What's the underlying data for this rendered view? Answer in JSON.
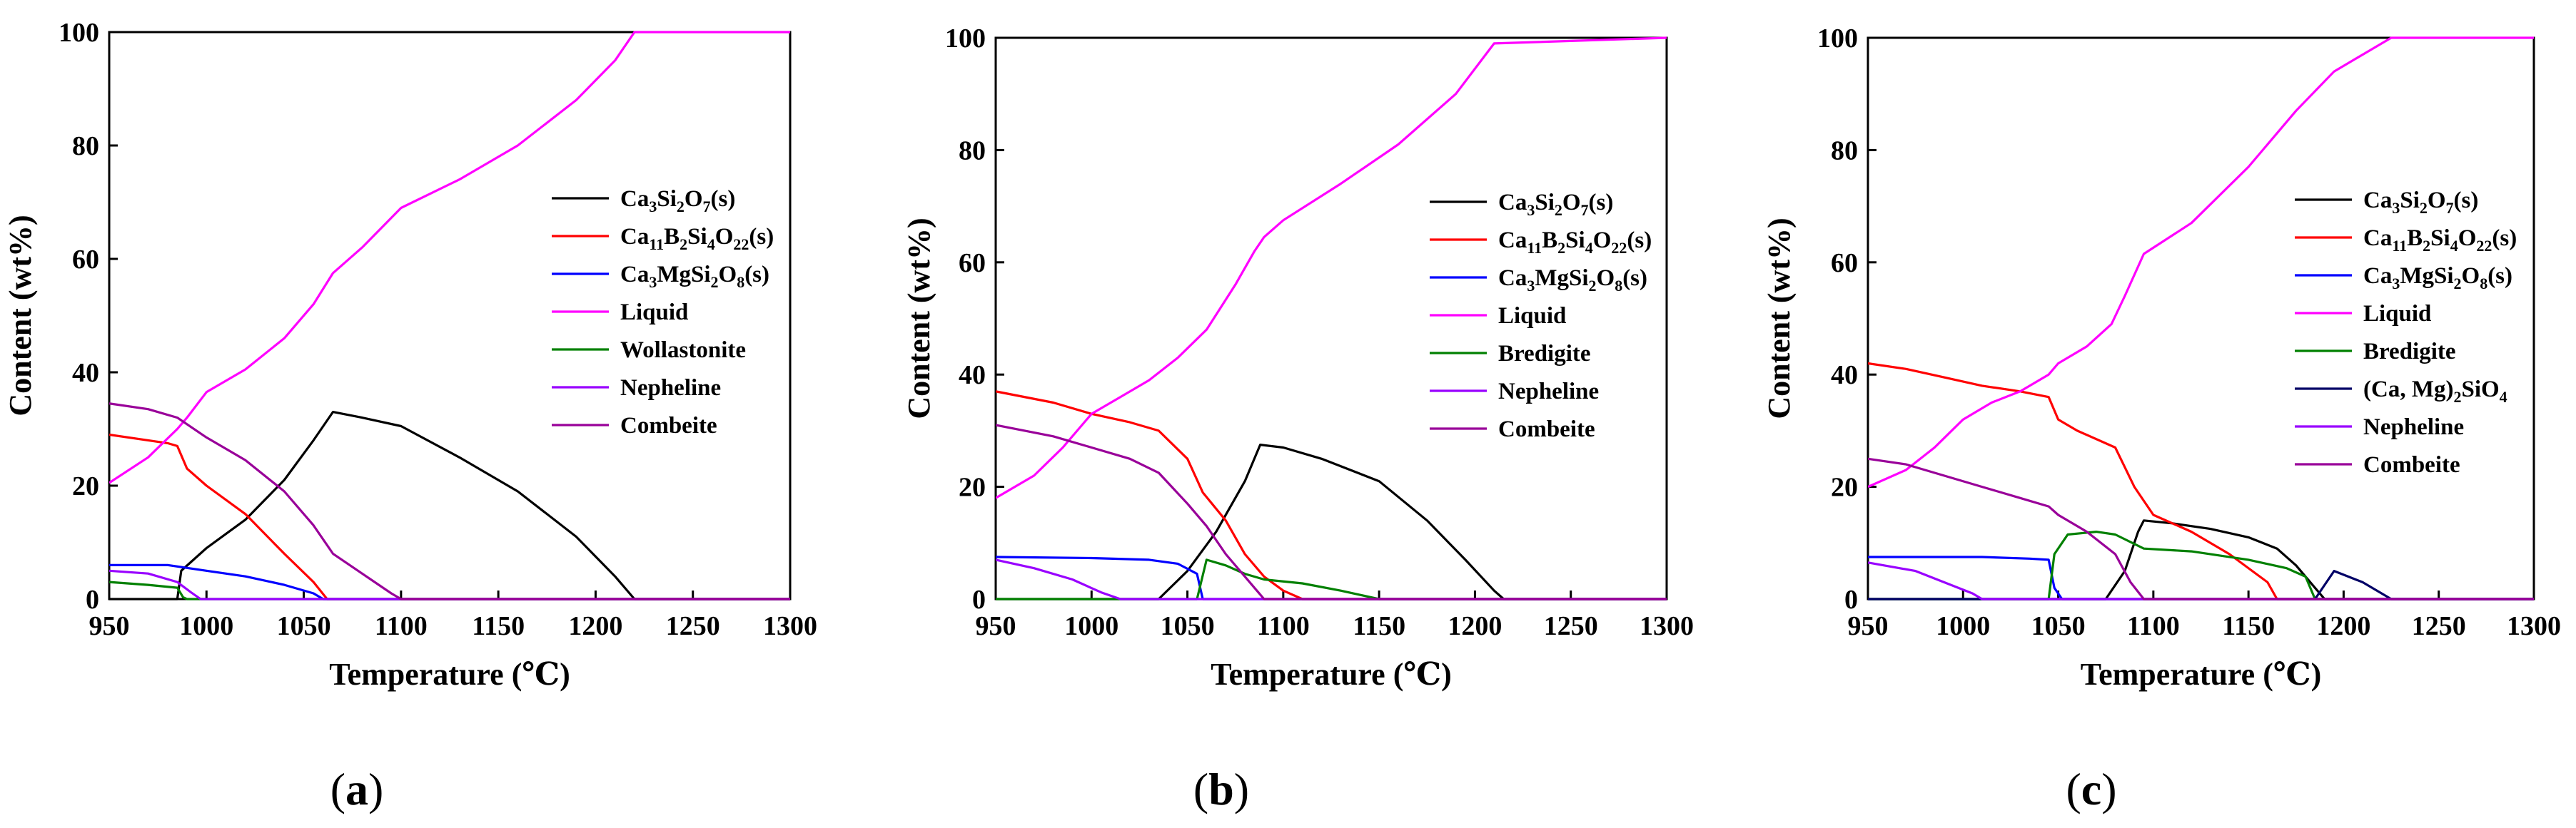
{
  "chart_data": [
    {
      "type": "line",
      "panel_label": "a",
      "xlabel": "Temperature (℃)",
      "ylabel": "Content (wt%)",
      "xlim": [
        950,
        1300
      ],
      "ylim": [
        0,
        100
      ],
      "xticks": [
        950,
        1000,
        1050,
        1100,
        1150,
        1200,
        1250,
        1300
      ],
      "yticks": [
        0,
        20,
        40,
        60,
        80,
        100
      ],
      "grid": false,
      "legend_position": "center-right",
      "series": [
        {
          "name": "Ca3Si2O7(s)",
          "label": [
            [
              "Ca",
              ""
            ],
            [
              "3",
              "sub"
            ],
            [
              "Si",
              ""
            ],
            [
              "2",
              "sub"
            ],
            [
              "O",
              ""
            ],
            [
              "7",
              "sub"
            ],
            [
              "(s)",
              ""
            ]
          ],
          "color": "#000000",
          "x": [
            950,
            985,
            987,
            1000,
            1020,
            1040,
            1055,
            1065,
            1080,
            1100,
            1130,
            1160,
            1190,
            1210,
            1220,
            1300
          ],
          "y": [
            0,
            0,
            5,
            9,
            14,
            21,
            28,
            33,
            32,
            30.5,
            25,
            19,
            11,
            4,
            0,
            0
          ]
        },
        {
          "name": "Ca11B2Si4O22(s)",
          "label": [
            [
              "Ca",
              ""
            ],
            [
              "11",
              "sub"
            ],
            [
              "B",
              ""
            ],
            [
              "2",
              "sub"
            ],
            [
              "Si",
              ""
            ],
            [
              "4",
              "sub"
            ],
            [
              "O",
              ""
            ],
            [
              "22",
              "sub"
            ],
            [
              "(s)",
              ""
            ]
          ],
          "color": "#ff0000",
          "x": [
            950,
            970,
            980,
            985,
            990,
            1000,
            1020,
            1040,
            1055,
            1062,
            1065,
            1300
          ],
          "y": [
            29,
            28,
            27.5,
            27,
            23,
            20,
            15,
            8,
            3,
            0,
            0,
            0
          ]
        },
        {
          "name": "Ca3MgSi2O8(s)",
          "label": [
            [
              "Ca",
              ""
            ],
            [
              "3",
              "sub"
            ],
            [
              "MgSi",
              ""
            ],
            [
              "2",
              "sub"
            ],
            [
              "O",
              ""
            ],
            [
              "8",
              "sub"
            ],
            [
              "(s)",
              ""
            ]
          ],
          "color": "#0000ff",
          "x": [
            950,
            980,
            990,
            1000,
            1020,
            1040,
            1055,
            1060,
            1300
          ],
          "y": [
            6,
            6,
            5.5,
            5,
            4,
            2.5,
            1,
            0,
            0
          ]
        },
        {
          "name": "Liquid",
          "label": [
            [
              "Liquid",
              ""
            ]
          ],
          "color": "#ff00ff",
          "x": [
            950,
            970,
            985,
            990,
            1000,
            1020,
            1040,
            1055,
            1065,
            1080,
            1100,
            1130,
            1160,
            1190,
            1210,
            1220,
            1300
          ],
          "y": [
            20.5,
            25,
            30,
            32,
            36.5,
            40.5,
            46,
            52,
            57.5,
            62,
            69,
            74,
            80,
            88,
            95,
            100,
            100
          ]
        },
        {
          "name": "Wollastonite",
          "label": [
            [
              "Wollastonite",
              ""
            ]
          ],
          "color": "#008000",
          "x": [
            950,
            970,
            985,
            988,
            990,
            1300
          ],
          "y": [
            3,
            2.5,
            2,
            0.3,
            0,
            0
          ]
        },
        {
          "name": "Nepheline",
          "label": [
            [
              "Nepheline",
              ""
            ]
          ],
          "color": "#9900ff",
          "x": [
            950,
            970,
            985,
            992,
            997,
            1300
          ],
          "y": [
            5,
            4.5,
            3,
            1.2,
            0,
            0
          ]
        },
        {
          "name": "Combeite",
          "label": [
            [
              "Combeite",
              ""
            ]
          ],
          "color": "#990099",
          "x": [
            950,
            970,
            985,
            1000,
            1020,
            1040,
            1055,
            1065,
            1080,
            1095,
            1100,
            1300
          ],
          "y": [
            34.5,
            33.5,
            32,
            28.5,
            24.5,
            19,
            13,
            8,
            4.5,
            1,
            0,
            0
          ]
        }
      ]
    },
    {
      "type": "line",
      "panel_label": "b",
      "xlabel": "Temperature (℃)",
      "ylabel": "Content (wt%)",
      "xlim": [
        950,
        1300
      ],
      "ylim": [
        0,
        100
      ],
      "xticks": [
        950,
        1000,
        1050,
        1100,
        1150,
        1200,
        1250,
        1300
      ],
      "yticks": [
        0,
        20,
        40,
        60,
        80,
        100
      ],
      "grid": false,
      "legend_position": "center-right",
      "series": [
        {
          "name": "Ca3Si2O7(s)",
          "label": [
            [
              "Ca",
              ""
            ],
            [
              "3",
              "sub"
            ],
            [
              "Si",
              ""
            ],
            [
              "2",
              "sub"
            ],
            [
              "O",
              ""
            ],
            [
              "7",
              "sub"
            ],
            [
              "(s)",
              ""
            ]
          ],
          "color": "#000000",
          "x": [
            950,
            1035,
            1050,
            1065,
            1080,
            1088,
            1100,
            1120,
            1150,
            1175,
            1195,
            1210,
            1215,
            1300
          ],
          "y": [
            0,
            0,
            5,
            12,
            21,
            27.5,
            27,
            25,
            21,
            14,
            7,
            1.5,
            0,
            0
          ]
        },
        {
          "name": "Ca11B2Si4O22(s)",
          "label": [
            [
              "Ca",
              ""
            ],
            [
              "11",
              "sub"
            ],
            [
              "B",
              ""
            ],
            [
              "2",
              "sub"
            ],
            [
              "Si",
              ""
            ],
            [
              "4",
              "sub"
            ],
            [
              "O",
              ""
            ],
            [
              "22",
              "sub"
            ],
            [
              "(s)",
              ""
            ]
          ],
          "color": "#ff0000",
          "x": [
            950,
            980,
            1000,
            1020,
            1035,
            1050,
            1058,
            1070,
            1080,
            1090,
            1100,
            1110,
            1300
          ],
          "y": [
            37,
            35,
            33,
            31.5,
            30,
            25,
            19,
            14,
            8,
            4,
            1.5,
            0,
            0
          ]
        },
        {
          "name": "Ca3MgSi2O8(s)",
          "label": [
            [
              "Ca",
              ""
            ],
            [
              "3",
              "sub"
            ],
            [
              "MgSi",
              ""
            ],
            [
              "2",
              "sub"
            ],
            [
              "O",
              ""
            ],
            [
              "8",
              "sub"
            ],
            [
              "(s)",
              ""
            ]
          ],
          "color": "#0000ff",
          "x": [
            950,
            1000,
            1030,
            1045,
            1055,
            1058,
            1300
          ],
          "y": [
            7.5,
            7.3,
            7,
            6.3,
            4.5,
            0,
            0
          ]
        },
        {
          "name": "Liquid",
          "label": [
            [
              "Liquid",
              ""
            ]
          ],
          "color": "#ff00ff",
          "x": [
            950,
            970,
            985,
            1000,
            1015,
            1030,
            1045,
            1060,
            1075,
            1085,
            1090,
            1100,
            1130,
            1160,
            1190,
            1210,
            1300
          ],
          "y": [
            18,
            22,
            27,
            33,
            36,
            39,
            43,
            48,
            56,
            62,
            64.5,
            67.5,
            74,
            81,
            90,
            99,
            100
          ]
        },
        {
          "name": "Bredigite",
          "label": [
            [
              "Bredigite",
              ""
            ]
          ],
          "color": "#008000",
          "x": [
            950,
            1055,
            1060,
            1070,
            1080,
            1090,
            1110,
            1130,
            1150,
            1300
          ],
          "y": [
            0,
            0,
            7,
            6,
            4.5,
            3.5,
            2.8,
            1.5,
            0,
            0
          ]
        },
        {
          "name": "Nepheline",
          "label": [
            [
              "Nepheline",
              ""
            ]
          ],
          "color": "#9900ff",
          "x": [
            950,
            970,
            990,
            1005,
            1015,
            1300
          ],
          "y": [
            7,
            5.5,
            3.5,
            1.2,
            0,
            0
          ]
        },
        {
          "name": "Combeite",
          "label": [
            [
              "Combeite",
              ""
            ]
          ],
          "color": "#990099",
          "x": [
            950,
            980,
            1000,
            1020,
            1035,
            1050,
            1060,
            1070,
            1085,
            1090,
            1300
          ],
          "y": [
            31,
            29,
            27,
            25,
            22.5,
            17,
            13,
            8,
            2,
            0,
            0
          ]
        }
      ]
    },
    {
      "type": "line",
      "panel_label": "c",
      "xlabel": "Temperature (℃)",
      "ylabel": "Content (wt%)",
      "xlim": [
        950,
        1300
      ],
      "ylim": [
        0,
        100
      ],
      "xticks": [
        950,
        1000,
        1050,
        1100,
        1150,
        1200,
        1250,
        1300
      ],
      "yticks": [
        0,
        20,
        40,
        60,
        80,
        100
      ],
      "grid": false,
      "legend_position": "center-right",
      "series": [
        {
          "name": "Ca3Si2O7(s)",
          "label": [
            [
              "Ca",
              ""
            ],
            [
              "3",
              "sub"
            ],
            [
              "Si",
              ""
            ],
            [
              "2",
              "sub"
            ],
            [
              "O",
              ""
            ],
            [
              "7",
              "sub"
            ],
            [
              "(s)",
              ""
            ]
          ],
          "color": "#000000",
          "x": [
            950,
            1075,
            1085,
            1092,
            1095,
            1110,
            1130,
            1150,
            1165,
            1175,
            1185,
            1190,
            1300
          ],
          "y": [
            0,
            0,
            5,
            12,
            14,
            13.5,
            12.5,
            11,
            9,
            6,
            2,
            0,
            0
          ]
        },
        {
          "name": "Ca11B2Si4O22(s)",
          "label": [
            [
              "Ca",
              ""
            ],
            [
              "11",
              "sub"
            ],
            [
              "B",
              ""
            ],
            [
              "2",
              "sub"
            ],
            [
              "Si",
              ""
            ],
            [
              "4",
              "sub"
            ],
            [
              "O",
              ""
            ],
            [
              "22",
              "sub"
            ],
            [
              "(s)",
              ""
            ]
          ],
          "color": "#ff0000",
          "x": [
            950,
            970,
            990,
            1010,
            1030,
            1045,
            1050,
            1060,
            1080,
            1090,
            1100,
            1120,
            1140,
            1160,
            1165,
            1300
          ],
          "y": [
            42,
            41,
            39.5,
            38,
            37,
            36,
            32,
            30,
            27,
            20,
            15,
            12,
            8,
            3,
            0,
            0
          ]
        },
        {
          "name": "Ca3MgSi2O8(s)",
          "label": [
            [
              "Ca",
              ""
            ],
            [
              "3",
              "sub"
            ],
            [
              "MgSi",
              ""
            ],
            [
              "2",
              "sub"
            ],
            [
              "O",
              ""
            ],
            [
              "8",
              "sub"
            ],
            [
              "(s)",
              ""
            ]
          ],
          "color": "#0000ff",
          "x": [
            950,
            1010,
            1035,
            1045,
            1048,
            1052,
            1300
          ],
          "y": [
            7.5,
            7.5,
            7.2,
            7,
            2,
            0,
            0
          ]
        },
        {
          "name": "Liquid",
          "label": [
            [
              "Liquid",
              ""
            ]
          ],
          "color": "#ff00ff",
          "x": [
            950,
            970,
            985,
            1000,
            1015,
            1030,
            1045,
            1050,
            1065,
            1078,
            1085,
            1095,
            1120,
            1150,
            1175,
            1195,
            1215,
            1225,
            1300
          ],
          "y": [
            20,
            23,
            27,
            32,
            35,
            37,
            40,
            42,
            45,
            49,
            54,
            61.5,
            67,
            77,
            87,
            94,
            98,
            100,
            100
          ]
        },
        {
          "name": "Bredigite",
          "label": [
            [
              "Bredigite",
              ""
            ]
          ],
          "color": "#008000",
          "x": [
            950,
            1045,
            1048,
            1055,
            1070,
            1080,
            1095,
            1120,
            1150,
            1170,
            1180,
            1185,
            1300
          ],
          "y": [
            0,
            0,
            8,
            11.5,
            12,
            11.5,
            9,
            8.5,
            7,
            5.5,
            4,
            0,
            0
          ]
        },
        {
          "name": "(Ca, Mg)2SiO4",
          "label": [
            [
              "(Ca, Mg)",
              ""
            ],
            [
              "2",
              "sub"
            ],
            [
              "SiO",
              ""
            ],
            [
              "4",
              "sub"
            ]
          ],
          "color": "#000066",
          "x": [
            950,
            1185,
            1195,
            1210,
            1225,
            1300
          ],
          "y": [
            0,
            0,
            5,
            3,
            0,
            0
          ]
        },
        {
          "name": "Nepheline",
          "label": [
            [
              "Nepheline",
              ""
            ]
          ],
          "color": "#9900ff",
          "x": [
            950,
            975,
            990,
            1005,
            1010,
            1300
          ],
          "y": [
            6.5,
            5,
            3,
            1,
            0,
            0
          ]
        },
        {
          "name": "Combeite",
          "label": [
            [
              "Combeite",
              ""
            ]
          ],
          "color": "#990099",
          "x": [
            950,
            970,
            990,
            1010,
            1030,
            1045,
            1050,
            1065,
            1080,
            1088,
            1095,
            1300
          ],
          "y": [
            25,
            24,
            22,
            20,
            18,
            16.5,
            15,
            12,
            8,
            3,
            0,
            0
          ]
        }
      ]
    }
  ]
}
